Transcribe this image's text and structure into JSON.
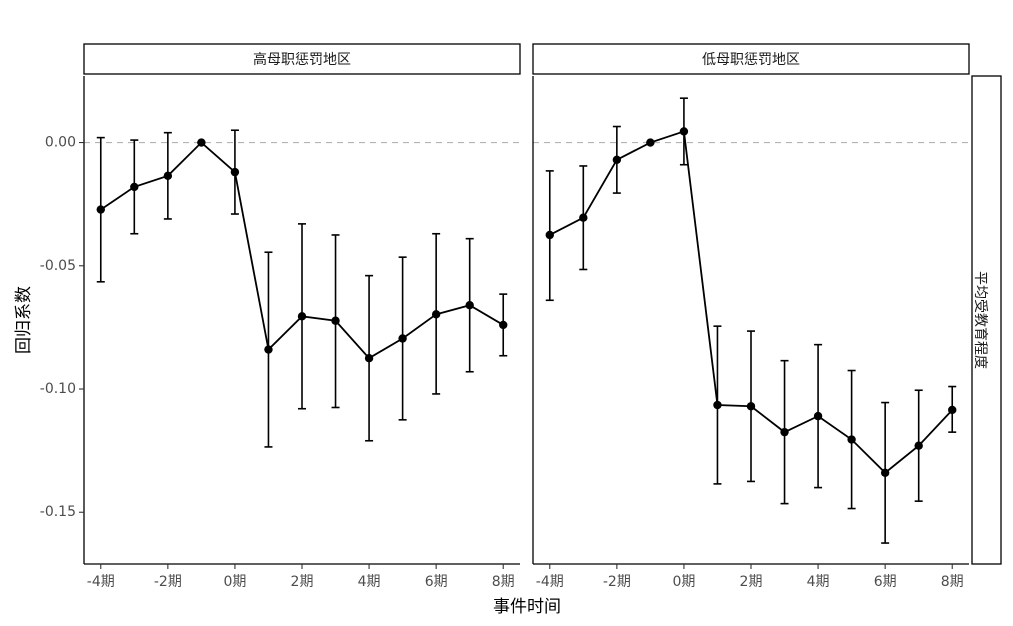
{
  "chart_data": {
    "type": "line",
    "xlabel": "事件时间",
    "ylabel": "回归系数",
    "facet_right_label": "平均受教育程度",
    "x_ticks": [
      -4,
      -2,
      0,
      2,
      4,
      6,
      8
    ],
    "x_tick_labels": [
      "-4期",
      "-2期",
      "0期",
      "2期",
      "4期",
      "6期",
      "8期"
    ],
    "xlim": [
      -4.5,
      8.5
    ],
    "y_ticks": [
      0.0,
      -0.05,
      -0.1,
      -0.15
    ],
    "y_tick_labels": [
      "0.00",
      "-0.05",
      "-0.10",
      "-0.15"
    ],
    "ylim": [
      -0.171,
      0.027
    ],
    "reference_line_y": 0,
    "colors": {
      "line": "#000000",
      "reference": "#b3b3b3",
      "strip_fill": "#ffffff"
    },
    "panels": [
      {
        "title": "高母职惩罚地区",
        "x": [
          -4,
          -3,
          -2,
          -1,
          0,
          1,
          2,
          3,
          4,
          5,
          6,
          7,
          8
        ],
        "y": [
          -0.0272,
          -0.018,
          -0.0135,
          0.0,
          -0.012,
          -0.084,
          -0.0705,
          -0.0723,
          -0.0875,
          -0.0795,
          -0.0697,
          -0.066,
          -0.074
        ],
        "lower": [
          -0.0565,
          -0.037,
          -0.031,
          0.0,
          -0.029,
          -0.1235,
          -0.108,
          -0.1075,
          -0.121,
          -0.1125,
          -0.102,
          -0.093,
          -0.0865
        ],
        "upper": [
          0.002,
          0.001,
          0.004,
          0.0,
          0.005,
          -0.0445,
          -0.033,
          -0.0375,
          -0.054,
          -0.0465,
          -0.037,
          -0.039,
          -0.0615
        ]
      },
      {
        "title": "低母职惩罚地区",
        "x": [
          -4,
          -3,
          -2,
          -1,
          0,
          1,
          2,
          3,
          4,
          5,
          6,
          7,
          8
        ],
        "y": [
          -0.0375,
          -0.0305,
          -0.007,
          0.0,
          0.0045,
          -0.1065,
          -0.107,
          -0.1175,
          -0.111,
          -0.1205,
          -0.134,
          -0.123,
          -0.1085
        ],
        "lower": [
          -0.064,
          -0.0515,
          -0.0205,
          0.0,
          -0.009,
          -0.1385,
          -0.1375,
          -0.1465,
          -0.14,
          -0.1485,
          -0.1625,
          -0.1455,
          -0.1175
        ],
        "upper": [
          -0.0115,
          -0.0095,
          0.0065,
          0.0,
          0.018,
          -0.0745,
          -0.0765,
          -0.0885,
          -0.082,
          -0.0925,
          -0.1055,
          -0.1005,
          -0.099
        ]
      }
    ]
  }
}
